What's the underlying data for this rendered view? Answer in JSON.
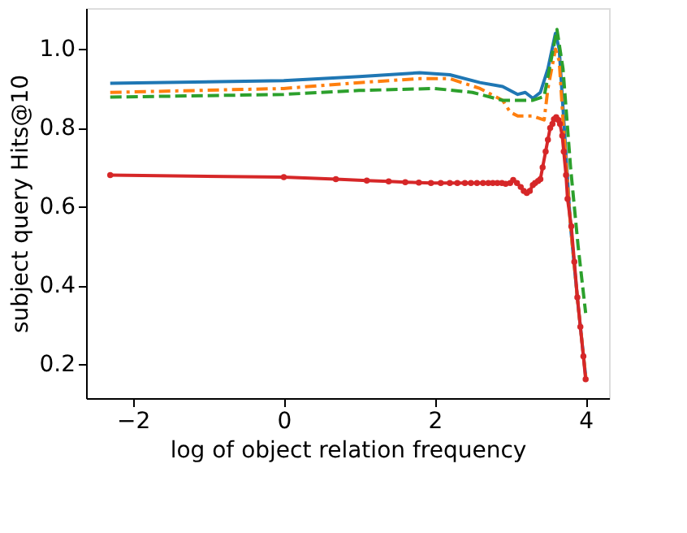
{
  "chart_data": {
    "type": "line",
    "xlabel": "log of object relation frequency",
    "ylabel": "subject query Hits@10",
    "xlim": [
      -2.62,
      4.31
    ],
    "ylim": [
      0.114,
      1.104
    ],
    "xticks": [
      -2,
      0,
      2,
      4
    ],
    "yticks": [
      {
        "value": 0.2,
        "label": "0.2"
      },
      {
        "value": 0.4,
        "label": "0.4"
      },
      {
        "value": 0.6,
        "label": "0.6"
      },
      {
        "value": 0.8,
        "label": "0.8"
      },
      {
        "value": 1.0,
        "label": "1.0"
      }
    ],
    "grid": false,
    "series": [
      {
        "color": "#1f77b4",
        "line_style": "solid",
        "marker": "none",
        "x": [
          -2.3,
          0,
          1,
          1.8,
          2.2,
          2.6,
          2.9,
          3.1,
          3.2,
          3.3,
          3.4,
          3.5,
          3.6,
          3.65,
          3.7,
          3.8,
          3.9,
          4.0
        ],
        "values": [
          0.913,
          0.92,
          0.93,
          0.94,
          0.935,
          0.915,
          0.905,
          0.885,
          0.89,
          0.875,
          0.89,
          0.95,
          1.04,
          1.0,
          0.85,
          0.55,
          0.35,
          0.17
        ]
      },
      {
        "color": "#ff7f0e",
        "line_style": "dashdot",
        "marker": "none",
        "x": [
          -2.3,
          0,
          1,
          1.8,
          2.2,
          2.6,
          2.9,
          3.0,
          3.1,
          3.3,
          3.45,
          3.5,
          3.6,
          3.65,
          3.7,
          3.8,
          3.9,
          4.0
        ],
        "values": [
          0.89,
          0.9,
          0.915,
          0.925,
          0.925,
          0.9,
          0.87,
          0.84,
          0.83,
          0.83,
          0.82,
          0.9,
          1.0,
          0.97,
          0.82,
          0.55,
          0.35,
          0.17
        ]
      },
      {
        "color": "#2ca02c",
        "line_style": "dashed",
        "marker": "none",
        "x": [
          -2.3,
          0,
          1,
          2,
          2.5,
          2.9,
          3.1,
          3.3,
          3.45,
          3.55,
          3.62,
          3.7,
          3.8,
          3.9,
          4.0
        ],
        "values": [
          0.878,
          0.885,
          0.895,
          0.9,
          0.89,
          0.87,
          0.87,
          0.87,
          0.88,
          0.98,
          1.05,
          0.95,
          0.7,
          0.5,
          0.33
        ]
      },
      {
        "color": "#d62728",
        "line_style": "solid",
        "marker": "circle",
        "x": [
          -2.3,
          0,
          0.69,
          1.1,
          1.39,
          1.61,
          1.79,
          1.95,
          2.08,
          2.2,
          2.3,
          2.4,
          2.48,
          2.56,
          2.64,
          2.71,
          2.77,
          2.83,
          2.89,
          2.94,
          3.0,
          3.04,
          3.09,
          3.14,
          3.18,
          3.22,
          3.26,
          3.3,
          3.33,
          3.37,
          3.4,
          3.43,
          3.47,
          3.5,
          3.53,
          3.56,
          3.58,
          3.61,
          3.64,
          3.66,
          3.69,
          3.71,
          3.74,
          3.76,
          3.81,
          3.85,
          3.89,
          3.93,
          3.97,
          4.0
        ],
        "values": [
          0.68,
          0.675,
          0.67,
          0.666,
          0.664,
          0.662,
          0.661,
          0.66,
          0.66,
          0.66,
          0.66,
          0.66,
          0.66,
          0.66,
          0.66,
          0.66,
          0.66,
          0.66,
          0.66,
          0.658,
          0.66,
          0.668,
          0.66,
          0.65,
          0.64,
          0.635,
          0.64,
          0.655,
          0.66,
          0.665,
          0.67,
          0.7,
          0.74,
          0.77,
          0.8,
          0.81,
          0.822,
          0.827,
          0.82,
          0.81,
          0.78,
          0.74,
          0.68,
          0.62,
          0.55,
          0.46,
          0.37,
          0.295,
          0.22,
          0.162
        ]
      }
    ]
  }
}
